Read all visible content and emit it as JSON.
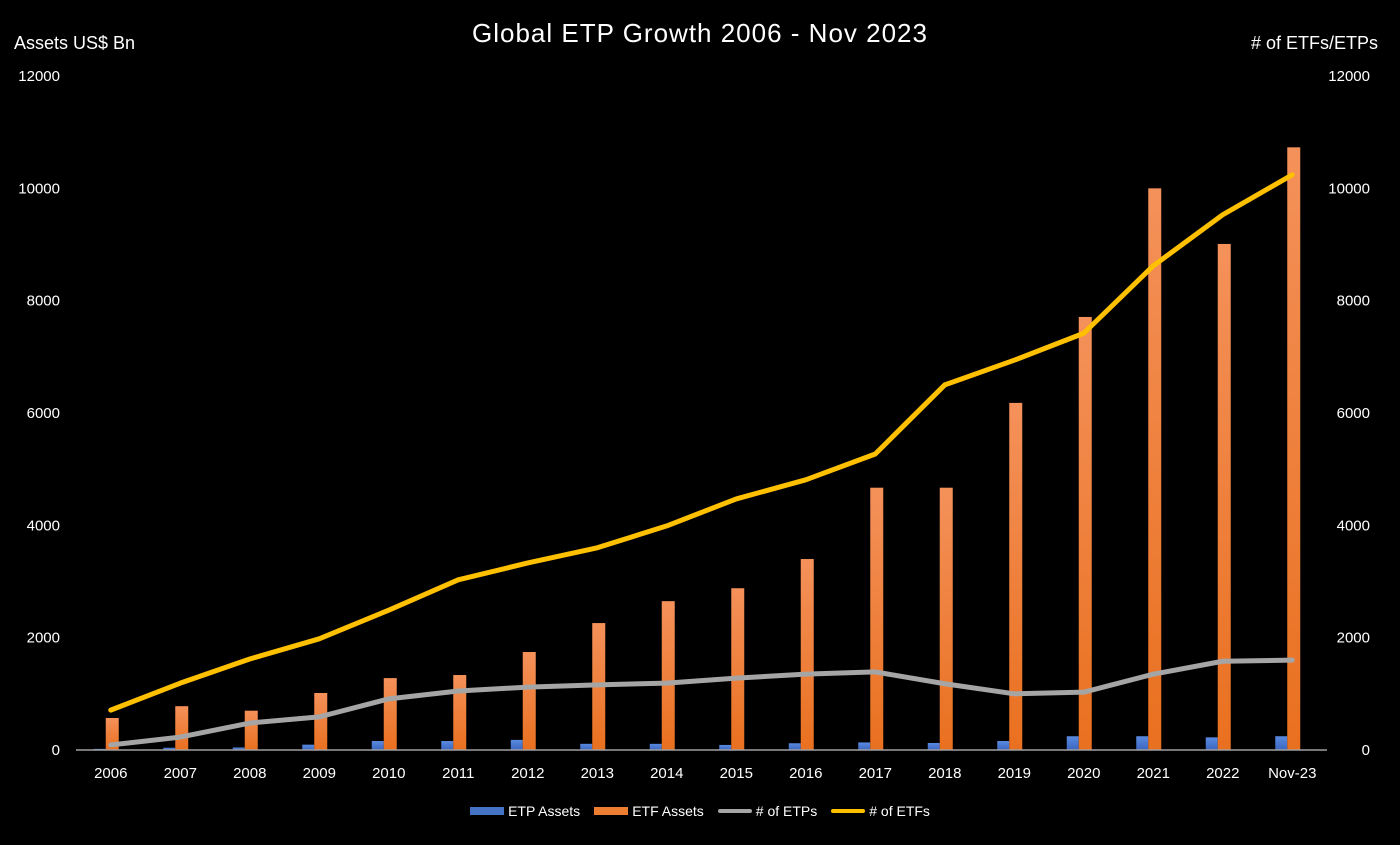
{
  "chart_data": {
    "type": "bar",
    "title": "Global ETP Growth 2006 - Nov 2023",
    "ylabel_left": "Assets US$ Bn",
    "ylabel_right": "# of ETFs/ETPs",
    "ylim": [
      0,
      12000
    ],
    "y2lim": [
      0,
      12000
    ],
    "yticks": [
      0,
      2000,
      4000,
      6000,
      8000,
      10000,
      12000
    ],
    "grid": false,
    "legend": "bottom",
    "categories": [
      "2006",
      "2007",
      "2008",
      "2009",
      "2010",
      "2011",
      "2012",
      "2013",
      "2014",
      "2015",
      "2016",
      "2017",
      "2018",
      "2019",
      "2020",
      "2021",
      "2022",
      "Nov-23"
    ],
    "series": [
      {
        "name": "ETP Assets",
        "kind": "bar",
        "axis": "left",
        "color": "#4472c4",
        "values": [
          20,
          40,
          45,
          95,
          160,
          160,
          180,
          110,
          110,
          90,
          120,
          135,
          125,
          160,
          245,
          245,
          225,
          245
        ]
      },
      {
        "name": "ETF Assets",
        "kind": "bar",
        "axis": "left",
        "color": "#ed7d31",
        "values": [
          570,
          780,
          700,
          1015,
          1280,
          1335,
          1745,
          2260,
          2650,
          2880,
          3400,
          4670,
          4670,
          6180,
          7710,
          10000,
          9010,
          10730
        ]
      },
      {
        "name": "# of ETPs",
        "kind": "line",
        "axis": "right",
        "color": "#a5a5a5",
        "values": [
          90,
          230,
          480,
          590,
          910,
          1050,
          1120,
          1160,
          1190,
          1280,
          1350,
          1390,
          1180,
          1000,
          1030,
          1350,
          1580,
          1600
        ]
      },
      {
        "name": "# of ETFs",
        "kind": "line",
        "axis": "right",
        "color": "#ffc000",
        "values": [
          710,
          1190,
          1620,
          1980,
          2490,
          3030,
          3330,
          3600,
          3990,
          4470,
          4810,
          5270,
          6500,
          6940,
          7420,
          8620,
          9530,
          10240
        ]
      }
    ]
  }
}
